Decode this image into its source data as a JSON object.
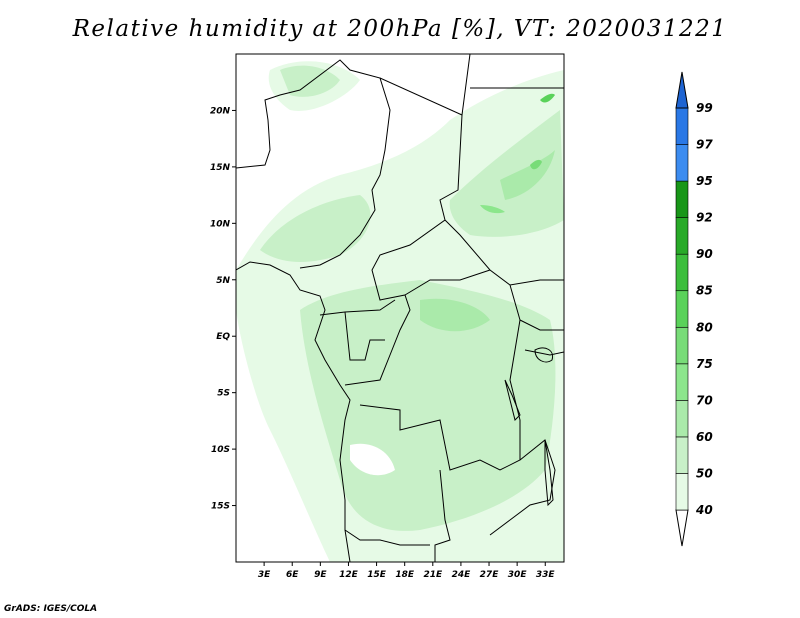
{
  "title": "Relative humidity at 200hPa [%], VT: 2020031221",
  "credit": "GrADS: IGES/COLA",
  "map": {
    "lon_range": [
      0,
      35
    ],
    "lat_range": [
      -20,
      25
    ],
    "lat_labels": [
      "20N",
      "15N",
      "10N",
      "5N",
      "EQ",
      "5S",
      "10S",
      "15S"
    ],
    "lat_values": [
      20,
      15,
      10,
      5,
      0,
      -5,
      -10,
      -15
    ],
    "lon_labels": [
      "3E",
      "6E",
      "9E",
      "12E",
      "15E",
      "18E",
      "21E",
      "24E",
      "27E",
      "30E",
      "33E"
    ],
    "lon_values": [
      3,
      6,
      9,
      12,
      15,
      18,
      21,
      24,
      27,
      30,
      33
    ]
  },
  "colorbar": {
    "levels": [
      "40",
      "50",
      "60",
      "70",
      "75",
      "80",
      "85",
      "90",
      "92",
      "95",
      "97",
      "99"
    ],
    "colors": [
      "#e6fae6",
      "#c8f0c8",
      "#aaeaaa",
      "#8ce68c",
      "#78dc78",
      "#5ad25a",
      "#3cbe3c",
      "#28aa28",
      "#189618",
      "#3c8cf0",
      "#2a78e6",
      "#1e64d2"
    ]
  }
}
